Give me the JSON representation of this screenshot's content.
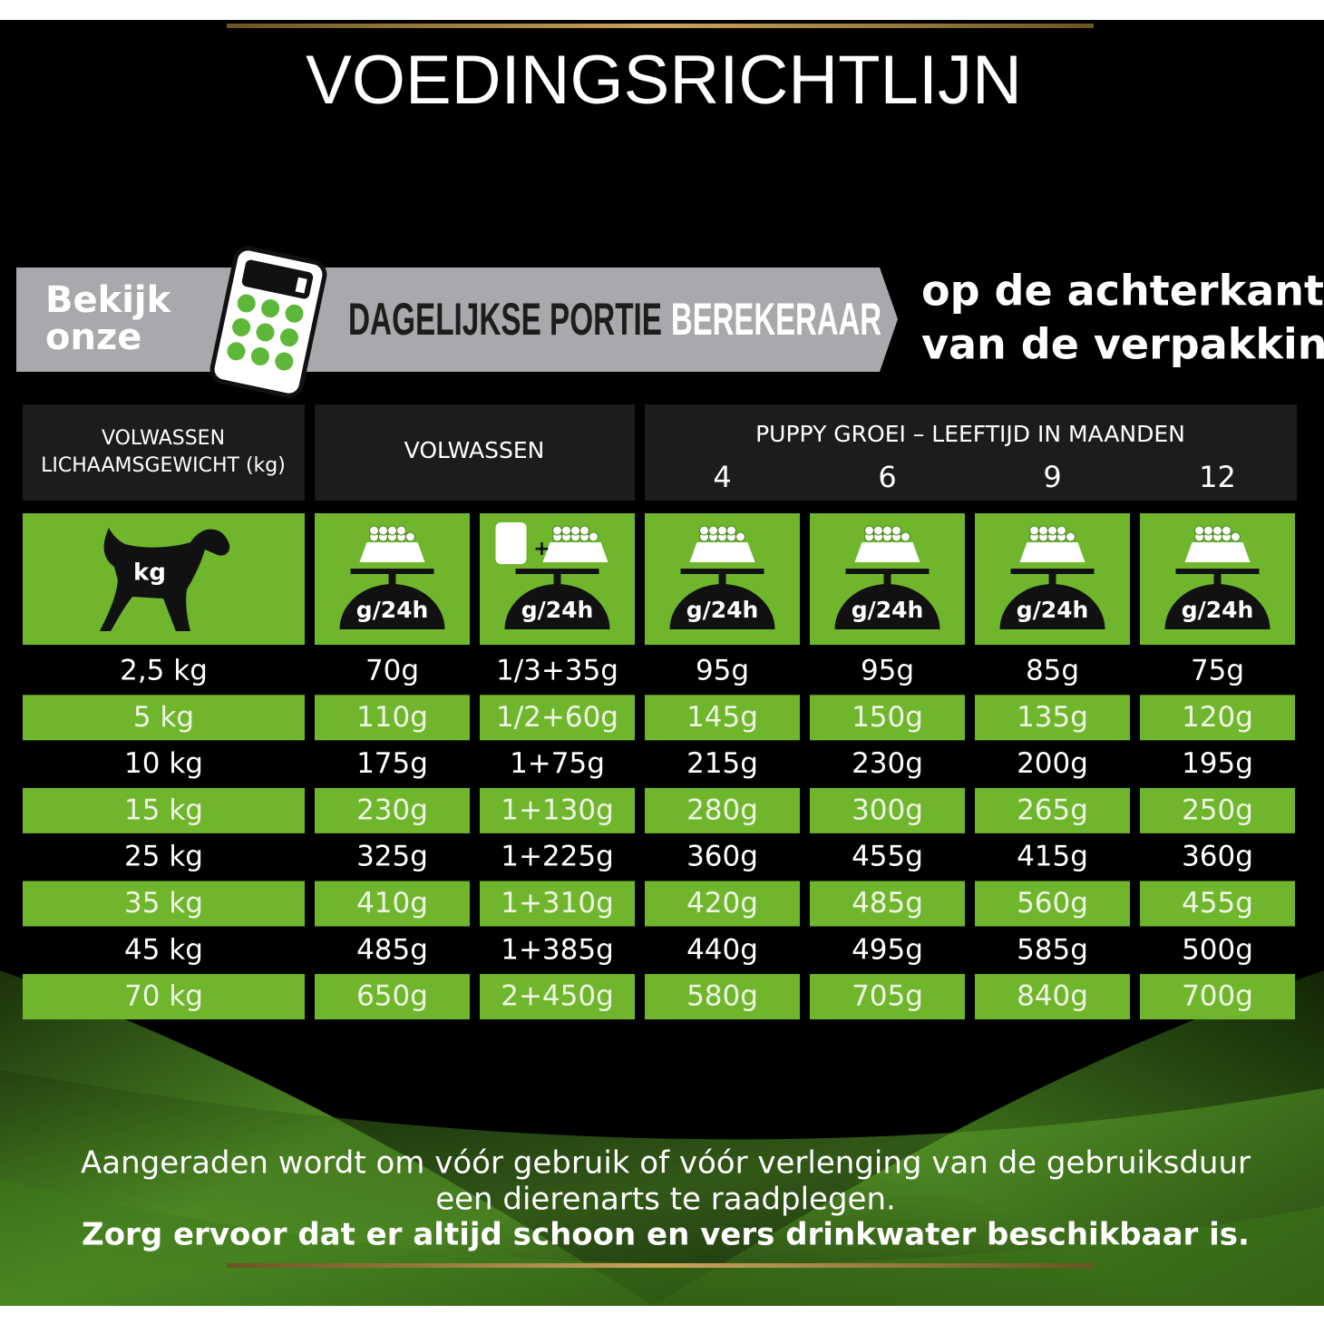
{
  "title": "VOEDINGSRICHTLIJN",
  "banner": {
    "lead": [
      "Bekijk",
      "onze"
    ],
    "dark": "DAGELIJKSE PORTIE",
    "light": "BEREKERAAR",
    "side": [
      "op de achterkant",
      "van de verpakking"
    ]
  },
  "table": {
    "weight_header": [
      "VOLWASSEN",
      "LICHAAMSGEWICHT (kg)"
    ],
    "adult_header": "VOLWASSEN",
    "puppy_header": "PUPPY GROEI – LEEFTIJD IN MAANDEN",
    "ages": [
      "4",
      "6",
      "9",
      "12"
    ],
    "icon_weight": "kg",
    "icon_plus": "+",
    "icon_units": [
      "g/24h",
      "g/24h",
      "g/24h",
      "g/24h",
      "g/24h",
      "g/24h"
    ],
    "rows": [
      [
        "2,5 kg",
        "70g",
        "1/3+35g",
        "95g",
        "95g",
        "85g",
        "75g"
      ],
      [
        "5 kg",
        "110g",
        "1/2+60g",
        "145g",
        "150g",
        "135g",
        "120g"
      ],
      [
        "10 kg",
        "175g",
        "1+75g",
        "215g",
        "230g",
        "200g",
        "195g"
      ],
      [
        "15 kg",
        "230g",
        "1+130g",
        "280g",
        "300g",
        "265g",
        "250g"
      ],
      [
        "25 kg",
        "325g",
        "1+225g",
        "360g",
        "455g",
        "415g",
        "360g"
      ],
      [
        "35 kg",
        "410g",
        "1+310g",
        "420g",
        "485g",
        "560g",
        "455g"
      ],
      [
        "45 kg",
        "485g",
        "1+385g",
        "440g",
        "495g",
        "585g",
        "500g"
      ],
      [
        "70 kg",
        "650g",
        "2+450g",
        "580g",
        "705g",
        "840g",
        "700g"
      ]
    ]
  },
  "footer": [
    "Aangeraden wordt om vóór gebruik of vóór verlenging van de gebruiksduur",
    "een dierenarts te raadplegen.",
    "Zorg ervoor dat er altijd schoon en vers drinkwater beschikbaar is."
  ]
}
